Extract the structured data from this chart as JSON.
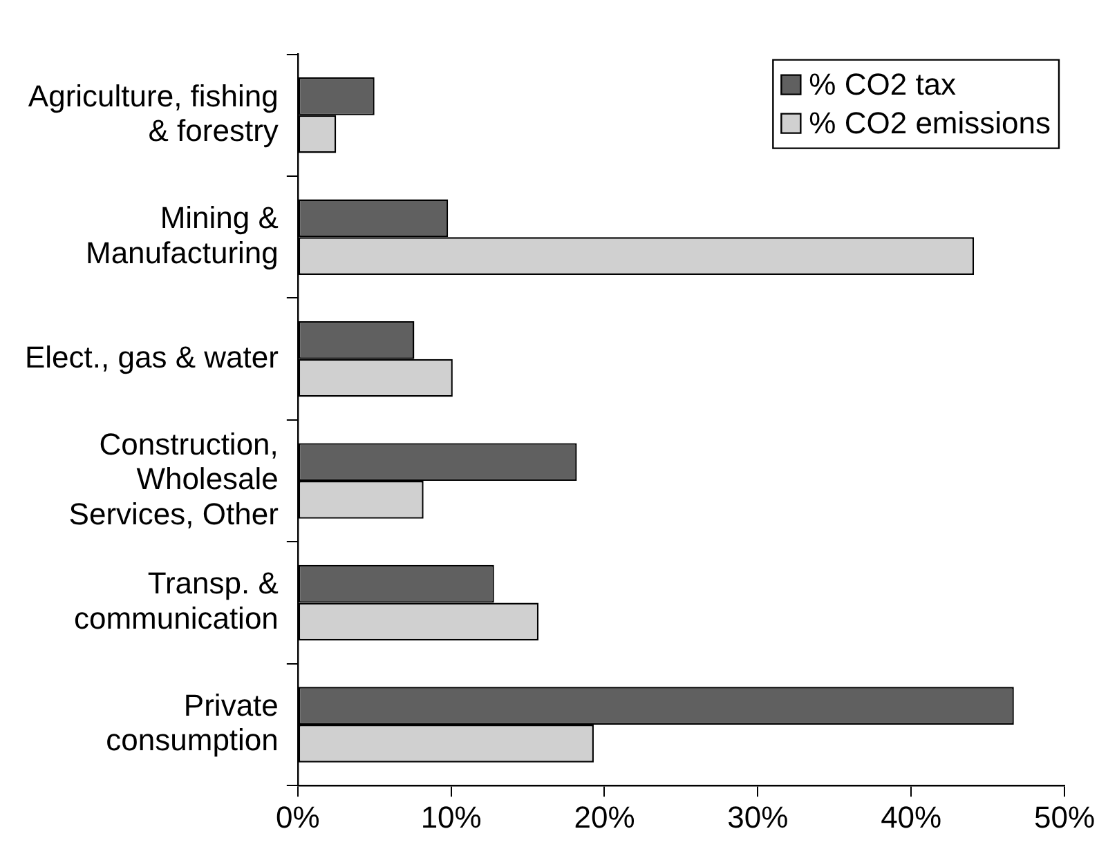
{
  "chart_data": {
    "type": "bar",
    "orientation": "horizontal",
    "categories": [
      "Agriculture, fishing & forestry",
      "Mining & Manufacturing",
      "Elect., gas & water",
      "Construction, Wholesale Services, Other",
      "Transp. & communication",
      "Private consumption"
    ],
    "series": [
      {
        "name": "% CO2 tax",
        "color": "#606060",
        "values": [
          5.0,
          9.8,
          7.6,
          18.2,
          12.8,
          46.7
        ]
      },
      {
        "name": "% CO2 emissions",
        "color": "#d0d0d0",
        "values": [
          2.5,
          44.1,
          10.1,
          8.2,
          15.7,
          19.3
        ]
      }
    ],
    "xlim": [
      0,
      50
    ],
    "xticks": [
      {
        "value": 0,
        "label": "0%"
      },
      {
        "value": 10,
        "label": "10%"
      },
      {
        "value": 20,
        "label": "20%"
      },
      {
        "value": 30,
        "label": "30%"
      },
      {
        "value": 40,
        "label": "40%"
      },
      {
        "value": 50,
        "label": "50%"
      }
    ],
    "grid": false,
    "legend": "top right"
  }
}
